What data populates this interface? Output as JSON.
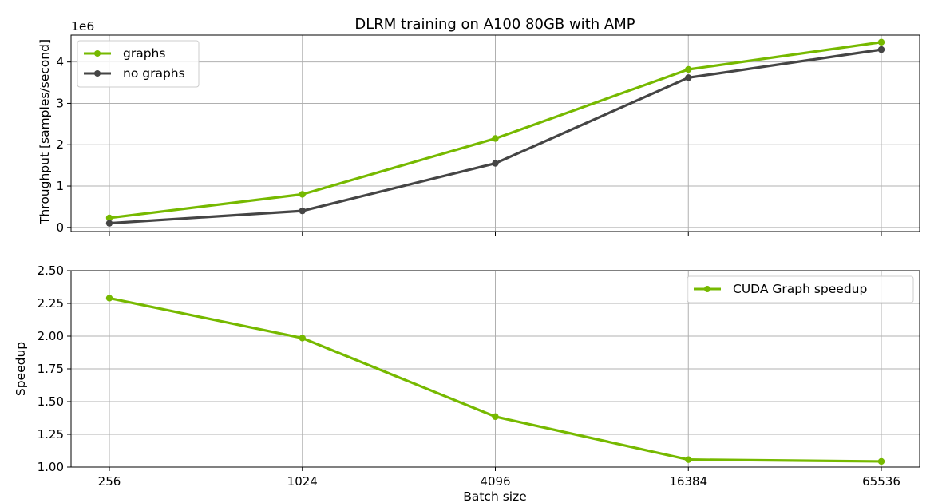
{
  "colors": {
    "graphs": "#76b900",
    "no_graphs": "#454545",
    "grid": "#b0b0b0",
    "axes": "#000000"
  },
  "chart_data": [
    {
      "type": "line",
      "title": "DLRM training on A100 80GB with AMP",
      "xlabel": "",
      "ylabel": "Throughput [samples/second]",
      "offset_text": "1e6",
      "categories": [
        "256",
        "1024",
        "4096",
        "16384",
        "65536"
      ],
      "x_scale": "log2",
      "ylim": [
        -0.1,
        4.65
      ],
      "yticks": [
        0,
        1,
        2,
        3,
        4
      ],
      "ytick_labels": [
        "0",
        "1",
        "2",
        "3",
        "4"
      ],
      "grid": true,
      "legend": "upper-left",
      "series": [
        {
          "name": "graphs",
          "color": "#76b900",
          "values": [
            0.23,
            0.8,
            2.15,
            3.82,
            4.48
          ]
        },
        {
          "name": "no graphs",
          "color": "#454545",
          "values": [
            0.1,
            0.4,
            1.55,
            3.62,
            4.3
          ]
        }
      ]
    },
    {
      "type": "line",
      "title": "",
      "xlabel": "Batch size",
      "ylabel": "Speedup",
      "categories": [
        "256",
        "1024",
        "4096",
        "16384",
        "65536"
      ],
      "x_scale": "log2",
      "ylim": [
        1.0,
        2.5
      ],
      "yticks": [
        1.0,
        1.25,
        1.5,
        1.75,
        2.0,
        2.25,
        2.5
      ],
      "ytick_labels": [
        "1.00",
        "1.25",
        "1.50",
        "1.75",
        "2.00",
        "2.25",
        "2.50"
      ],
      "grid": true,
      "legend": "upper-right",
      "series": [
        {
          "name": "CUDA Graph speedup",
          "color": "#76b900",
          "values": [
            2.29,
            1.985,
            1.385,
            1.057,
            1.043
          ]
        }
      ]
    }
  ]
}
